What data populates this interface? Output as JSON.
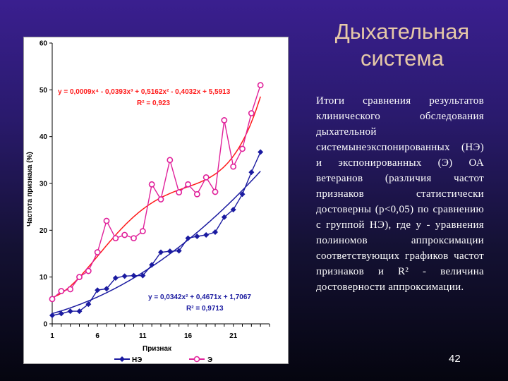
{
  "slide": {
    "title": "Дыхательная система",
    "body": "Итоги сравнения результатов клинического обследования дыхательной системынеэкспонированных (НЭ) и экспонированных (Э) ОА ветеранов (различия частот признаков статистически достоверны (p<0,05) по сравнению с группой НЭ), где y - уравнения полиномов аппроксимации соответствующих графиков частот признаков и R² - величина достоверности аппроксимации.",
    "page_number": "42"
  },
  "chart_data": {
    "type": "line",
    "xlabel": "Признак",
    "ylabel": "Частота признака (%)",
    "xticks": [
      1,
      6,
      11,
      16,
      21
    ],
    "yticks": [
      0,
      10,
      20,
      30,
      40,
      50,
      60
    ],
    "xlim": [
      1,
      25
    ],
    "ylim": [
      0,
      60
    ],
    "grid": false,
    "legend_position": "bottom",
    "x": [
      1,
      2,
      3,
      4,
      5,
      6,
      7,
      8,
      9,
      10,
      11,
      12,
      13,
      14,
      15,
      16,
      17,
      18,
      19,
      20,
      21,
      22,
      23,
      24
    ],
    "series": [
      {
        "name": "НЭ",
        "color": "#1a1aa0",
        "marker": "diamond",
        "values": [
          1.8,
          2.2,
          2.7,
          2.7,
          4.2,
          7.2,
          7.5,
          9.8,
          10.2,
          10.3,
          10.3,
          12.6,
          15.3,
          15.5,
          15.6,
          18.3,
          18.7,
          19.0,
          19.6,
          22.8,
          24.4,
          27.7,
          32.4,
          36.7
        ],
        "trend": {
          "equation": "y = 0,0342x² + 0,4671x + 1,7067",
          "r2": "R² = 0,9713",
          "coefficients": [
            0.0342,
            0.4671,
            1.7067
          ]
        }
      },
      {
        "name": "Э",
        "color": "#e0209a",
        "trend_color": "#ff1a1a",
        "marker": "circle",
        "values": [
          5.3,
          7.0,
          7.4,
          10.0,
          11.3,
          15.3,
          22.0,
          18.3,
          19.0,
          18.3,
          19.8,
          29.8,
          26.6,
          35.0,
          28.1,
          29.8,
          27.7,
          31.3,
          28.2,
          43.5,
          33.6,
          37.4,
          45.0,
          51.0
        ],
        "trend": {
          "equation": "y = 0,0009x⁴ - 0,0393x³ + 0,5162x² - 0,4032x + 5,5913",
          "r2": "R² = 0,923",
          "coefficients": [
            0.0009,
            -0.0393,
            0.5162,
            -0.4032,
            5.5913
          ]
        }
      }
    ]
  }
}
